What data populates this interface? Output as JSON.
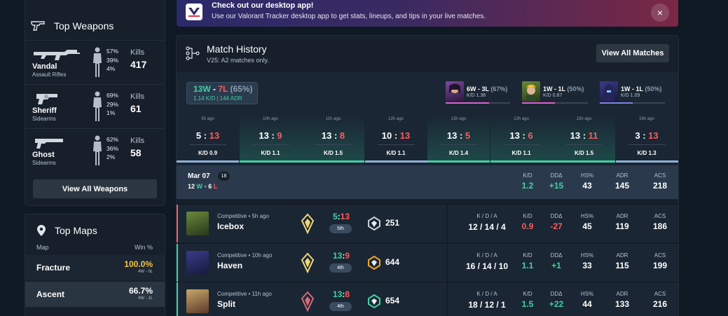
{
  "weapons": {
    "title": "Top Weapons",
    "view_all": "View All Weapons",
    "kills_label": "Kills",
    "items": [
      {
        "name": "Vandal",
        "category": "Assault Rifles",
        "head": "57%",
        "body": "39%",
        "legs": "4%",
        "kills": "417"
      },
      {
        "name": "Sheriff",
        "category": "Sidearms",
        "head": "69%",
        "body": "29%",
        "legs": "1%",
        "kills": "61"
      },
      {
        "name": "Ghost",
        "category": "Sidearms",
        "head": "62%",
        "body": "36%",
        "legs": "2%",
        "kills": "58"
      }
    ]
  },
  "maps": {
    "title": "Top Maps",
    "col_map": "Map",
    "col_win": "Win %",
    "items": [
      {
        "name": "Fracture",
        "win": "100.0%",
        "record": "4W - 0L"
      },
      {
        "name": "Ascent",
        "win": "66.7%",
        "record": "4W - 1L"
      }
    ]
  },
  "banner": {
    "title": "Check out our desktop app!",
    "text": "Use our Valorant Tracker desktop app to get stats, lineups, and tips in your live matches.",
    "close": "×"
  },
  "match_history": {
    "title": "Match History",
    "subtitle": "V25: A2 matches only.",
    "view_all": "View All Matches",
    "summary": {
      "wins": "13W",
      "sep": " - ",
      "losses": "7L",
      "pct": " (65%)",
      "line2": "1.14 K/D | 144 ADR"
    },
    "agents": [
      {
        "record": "6W - 3L",
        "pct": "(67%)",
        "kd": "K/D 1.36",
        "color": "#e05fd0",
        "fill": 0.67
      },
      {
        "record": "1W - 1L",
        "pct": "(50%)",
        "kd": "K/D 0.87",
        "color": "#e05fd0",
        "fill": 0.5
      },
      {
        "record": "1W - 1L",
        "pct": "(50%)",
        "kd": "K/D 1.09",
        "color": "#7d83e6",
        "fill": 0.5
      }
    ],
    "recent": [
      {
        "ago": "5h ago",
        "own": "5",
        "opp": "13",
        "kd": "K/D 0.9",
        "win": false
      },
      {
        "ago": "10h ago",
        "own": "13",
        "opp": "9",
        "kd": "K/D 1.1",
        "win": true
      },
      {
        "ago": "11h ago",
        "own": "13",
        "opp": "8",
        "kd": "K/D 1.5",
        "win": true
      },
      {
        "ago": "12h ago",
        "own": "10",
        "opp": "13",
        "kd": "K/D 1.1",
        "win": false
      },
      {
        "ago": "13h ago",
        "own": "13",
        "opp": "5",
        "kd": "K/D 1.4",
        "win": true
      },
      {
        "ago": "13h ago",
        "own": "13",
        "opp": "6",
        "kd": "K/D 1.1",
        "win": true
      },
      {
        "ago": "15h ago",
        "own": "13",
        "opp": "11",
        "kd": "K/D 1.5",
        "win": true
      },
      {
        "ago": "16h ago",
        "own": "3",
        "opp": "13",
        "kd": "K/D 1.3",
        "win": false
      }
    ],
    "day": {
      "date": "Mar 07",
      "count": "18",
      "wins": "12",
      "w": "W",
      "losses": "6",
      "l": "L",
      "headers": {
        "kd": "K/D",
        "dd": "DDΔ",
        "hs": "HS%",
        "adr": "ADR",
        "acs": "ACS"
      },
      "values": {
        "kd": "1.2",
        "dd": "+15",
        "hs": "43",
        "adr": "145",
        "acs": "218"
      }
    },
    "kda_label": "K / D / A",
    "matches": [
      {
        "mode": "Competitive • 5h ago",
        "map": "Icebox",
        "own": "5",
        "opp": "13",
        "place": "5th",
        "rr": "251",
        "kda": "12 / 14 / 4",
        "kd": "0.9",
        "dd": "-27",
        "hs": "45",
        "adr": "119",
        "acs": "186",
        "win": false
      },
      {
        "mode": "Competitive • 10h ago",
        "map": "Haven",
        "own": "13",
        "opp": "9",
        "place": "4th",
        "rr": "644",
        "kda": "16 / 14 / 10",
        "kd": "1.1",
        "dd": "+1",
        "hs": "33",
        "adr": "115",
        "acs": "199",
        "win": true
      },
      {
        "mode": "Competitive • 11h ago",
        "map": "Split",
        "own": "13",
        "opp": "8",
        "place": "4th",
        "rr": "654",
        "kda": "18 / 12 / 1",
        "kd": "1.5",
        "dd": "+22",
        "hs": "44",
        "adr": "133",
        "acs": "216",
        "win": true
      }
    ]
  },
  "colors": {
    "win": "#3fd2a4",
    "loss": "#ff5a5a",
    "accent_gold": "#f5c542"
  }
}
